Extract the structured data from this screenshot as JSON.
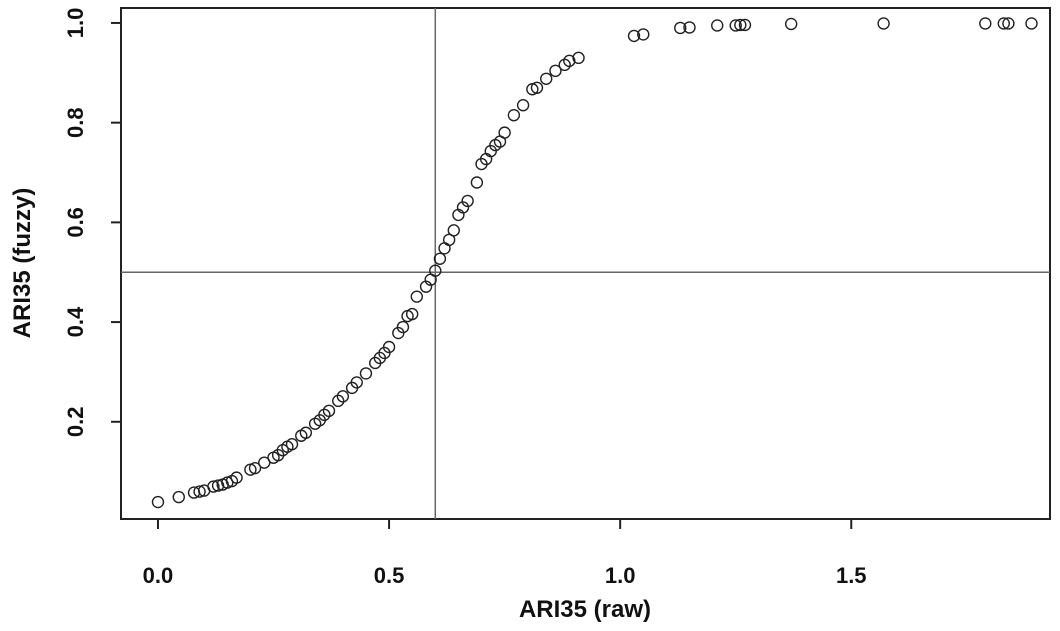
{
  "chart_data": {
    "type": "scatter",
    "xlabel": "ARI35 (raw)",
    "ylabel": "ARI35 (fuzzy)",
    "xlim": [
      -0.08,
      1.93
    ],
    "ylim": [
      0.005,
      1.03
    ],
    "x_ticks": [
      0.0,
      0.5,
      1.0,
      1.5
    ],
    "x_tick_labels": [
      "0.0",
      "0.5",
      "1.0",
      "1.5"
    ],
    "y_ticks": [
      0.2,
      0.4,
      0.6,
      0.8,
      1.0
    ],
    "y_tick_labels": [
      "0.2",
      "0.4",
      "0.6",
      "0.8",
      "1.0"
    ],
    "grid": false,
    "marker": "open-circle",
    "reference_lines": {
      "vertical_x": 0.6,
      "horizontal_y": 0.5
    },
    "colors": {
      "points": "#222222",
      "axes": "#222222",
      "reference_lines": "#666666"
    },
    "points": [
      [
        0.0,
        0.039
      ],
      [
        0.045,
        0.049
      ],
      [
        0.078,
        0.058
      ],
      [
        0.09,
        0.06
      ],
      [
        0.1,
        0.062
      ],
      [
        0.12,
        0.07
      ],
      [
        0.13,
        0.072
      ],
      [
        0.14,
        0.074
      ],
      [
        0.15,
        0.078
      ],
      [
        0.16,
        0.081
      ],
      [
        0.17,
        0.088
      ],
      [
        0.2,
        0.104
      ],
      [
        0.21,
        0.107
      ],
      [
        0.23,
        0.118
      ],
      [
        0.25,
        0.128
      ],
      [
        0.26,
        0.133
      ],
      [
        0.27,
        0.143
      ],
      [
        0.28,
        0.15
      ],
      [
        0.29,
        0.155
      ],
      [
        0.31,
        0.172
      ],
      [
        0.32,
        0.178
      ],
      [
        0.34,
        0.196
      ],
      [
        0.35,
        0.203
      ],
      [
        0.36,
        0.214
      ],
      [
        0.37,
        0.222
      ],
      [
        0.39,
        0.242
      ],
      [
        0.4,
        0.251
      ],
      [
        0.42,
        0.268
      ],
      [
        0.43,
        0.279
      ],
      [
        0.45,
        0.297
      ],
      [
        0.47,
        0.318
      ],
      [
        0.48,
        0.328
      ],
      [
        0.49,
        0.338
      ],
      [
        0.5,
        0.35
      ],
      [
        0.52,
        0.378
      ],
      [
        0.53,
        0.39
      ],
      [
        0.54,
        0.412
      ],
      [
        0.55,
        0.416
      ],
      [
        0.56,
        0.451
      ],
      [
        0.58,
        0.471
      ],
      [
        0.59,
        0.485
      ],
      [
        0.6,
        0.503
      ],
      [
        0.61,
        0.527
      ],
      [
        0.62,
        0.548
      ],
      [
        0.63,
        0.565
      ],
      [
        0.64,
        0.584
      ],
      [
        0.65,
        0.615
      ],
      [
        0.66,
        0.63
      ],
      [
        0.67,
        0.643
      ],
      [
        0.69,
        0.68
      ],
      [
        0.7,
        0.717
      ],
      [
        0.71,
        0.727
      ],
      [
        0.72,
        0.743
      ],
      [
        0.73,
        0.755
      ],
      [
        0.74,
        0.762
      ],
      [
        0.75,
        0.78
      ],
      [
        0.77,
        0.815
      ],
      [
        0.79,
        0.835
      ],
      [
        0.81,
        0.867
      ],
      [
        0.82,
        0.87
      ],
      [
        0.84,
        0.888
      ],
      [
        0.86,
        0.904
      ],
      [
        0.88,
        0.916
      ],
      [
        0.89,
        0.924
      ],
      [
        0.91,
        0.93
      ],
      [
        1.03,
        0.974
      ],
      [
        1.05,
        0.977
      ],
      [
        1.13,
        0.99
      ],
      [
        1.15,
        0.991
      ],
      [
        1.21,
        0.995
      ],
      [
        1.25,
        0.995
      ],
      [
        1.26,
        0.996
      ],
      [
        1.27,
        0.996
      ],
      [
        1.37,
        0.998
      ],
      [
        1.57,
        0.999
      ],
      [
        1.79,
        0.999
      ],
      [
        1.83,
        0.999
      ],
      [
        1.84,
        0.999
      ],
      [
        1.89,
        0.999
      ]
    ]
  }
}
